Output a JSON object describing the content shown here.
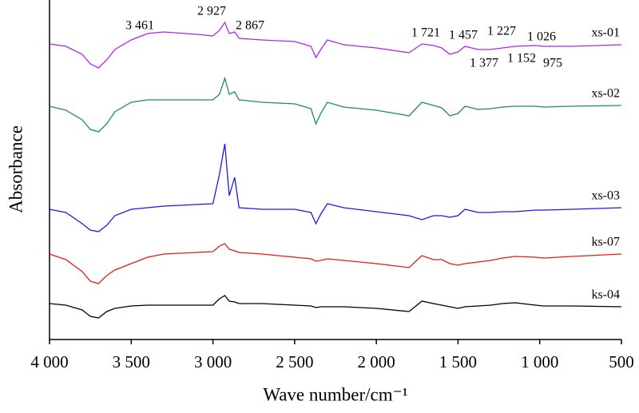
{
  "chart_data": {
    "type": "line",
    "xlabel": "Wave number/cm⁻¹",
    "ylabel": "Absorbance",
    "xlim": [
      4000,
      500
    ],
    "ylim": [
      0,
      420
    ],
    "xticks": [
      {
        "value": 4000,
        "label": "4 000"
      },
      {
        "value": 3500,
        "label": "3 500"
      },
      {
        "value": 3000,
        "label": "3 000"
      },
      {
        "value": 2500,
        "label": "2 500"
      },
      {
        "value": 2000,
        "label": "2 000"
      },
      {
        "value": 1500,
        "label": "1 500"
      },
      {
        "value": 1000,
        "label": "1 000"
      },
      500
    ],
    "annotations": [
      "3 461",
      "2 927",
      "2 867",
      "1 721",
      "1 457",
      "1 227",
      "1 026",
      "1 377",
      "1 152",
      "975"
    ],
    "x": [
      4000,
      3900,
      3800,
      3750,
      3700,
      3650,
      3600,
      3500,
      3400,
      3300,
      3100,
      3000,
      2960,
      2927,
      2900,
      2867,
      2840,
      2700,
      2500,
      2400,
      2370,
      2340,
      2300,
      2200,
      2000,
      1800,
      1721,
      1650,
      1600,
      1550,
      1500,
      1457,
      1377,
      1300,
      1227,
      1152,
      1026,
      975,
      800,
      500
    ],
    "series": [
      {
        "name": "xs-01",
        "color": "#b026e6",
        "values": [
          370,
          367,
          357,
          345,
          340,
          350,
          363,
          375,
          383,
          385,
          382,
          380,
          387,
          397,
          383,
          385,
          377,
          375,
          373,
          367,
          353,
          363,
          375,
          369,
          365,
          359,
          370,
          368,
          365,
          357,
          360,
          367,
          363,
          363,
          365,
          367,
          368,
          367,
          367,
          369
        ]
      },
      {
        "name": "xs-02",
        "color": "#1a8f5a",
        "values": [
          292,
          287,
          275,
          263,
          260,
          270,
          285,
          297,
          300,
          300,
          300,
          300,
          307,
          327,
          307,
          310,
          300,
          297,
          295,
          289,
          270,
          283,
          297,
          291,
          287,
          280,
          297,
          293,
          290,
          280,
          283,
          292,
          288,
          289,
          291,
          292,
          292,
          291,
          292,
          293
        ]
      },
      {
        "name": "xs-03",
        "color": "#1a1ae6",
        "values": [
          163,
          159,
          145,
          137,
          135,
          143,
          155,
          163,
          165,
          167,
          169,
          170,
          207,
          245,
          180,
          203,
          165,
          163,
          163,
          159,
          145,
          157,
          170,
          165,
          160,
          155,
          150,
          155,
          155,
          153,
          155,
          163,
          159,
          159,
          160,
          160,
          162,
          162,
          163,
          165
        ]
      },
      {
        "name": "ks-07",
        "color": "#e61a1a",
        "values": [
          107,
          100,
          85,
          73,
          70,
          80,
          87,
          95,
          103,
          107,
          109,
          110,
          117,
          120,
          113,
          111,
          109,
          107,
          103,
          101,
          98,
          99,
          101,
          99,
          95,
          90,
          105,
          100,
          100,
          95,
          93,
          95,
          97,
          99,
          102,
          104,
          103,
          102,
          104,
          107
        ]
      },
      {
        "name": "ks-04",
        "color": "#000000",
        "values": [
          45,
          43,
          37,
          29,
          27,
          35,
          39,
          42,
          43,
          43,
          43,
          43,
          51,
          55,
          48,
          47,
          45,
          45,
          43,
          42,
          40,
          41,
          41,
          41,
          39,
          35,
          48,
          45,
          43,
          41,
          39,
          41,
          42,
          43,
          45,
          46,
          43,
          42,
          42,
          41
        ]
      }
    ]
  }
}
